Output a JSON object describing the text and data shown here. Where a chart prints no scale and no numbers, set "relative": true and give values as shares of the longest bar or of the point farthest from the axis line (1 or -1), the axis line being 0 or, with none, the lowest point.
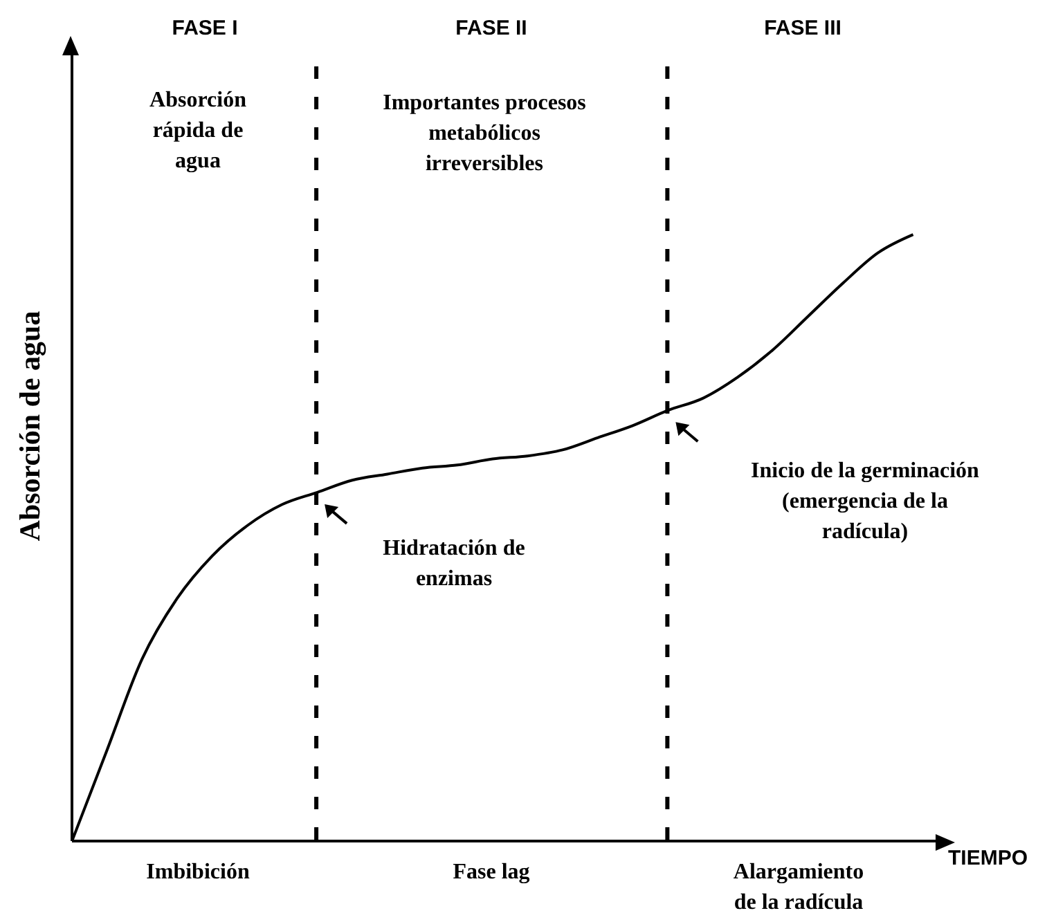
{
  "chart_data": {
    "type": "line",
    "relative": true,
    "xlabel": "TIEMPO",
    "ylabel": "Absorción de agua",
    "categories": [
      null,
      null,
      null,
      null,
      null,
      null,
      null,
      null,
      null,
      null,
      null,
      null,
      null,
      null,
      null,
      null,
      null,
      null,
      null,
      null,
      null,
      null,
      null,
      null,
      null
    ],
    "values": [
      0,
      0.15,
      0.3,
      0.4,
      0.47,
      0.52,
      0.555,
      0.575,
      0.595,
      0.605,
      0.615,
      0.62,
      0.63,
      0.635,
      0.645,
      0.665,
      0.685,
      0.71,
      0.73,
      0.765,
      0.81,
      0.865,
      0.92,
      0.97,
      1
    ],
    "color": "#000000",
    "marker": "none",
    "line_style": "solid",
    "grid": false,
    "legend": false,
    "annotations": [
      "FASE I",
      "FASE II",
      "FASE III",
      "Absorción rápida de agua",
      "Importantes procesos metabólicos irreversibles",
      "Hidratación de enzimas",
      "Inicio de la germinación (emergencia de la radícula)",
      "Imbibición",
      "Fase lag",
      "Alargamiento de la radícula"
    ]
  }
}
